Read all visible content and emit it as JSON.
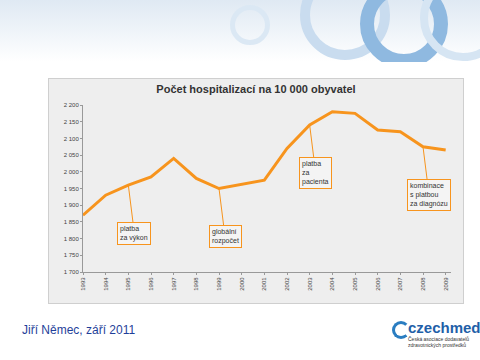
{
  "chart_data": {
    "type": "line",
    "title": "Počet hospitalizací na 10 000 obyvatel",
    "categories": [
      "1993",
      "1994",
      "1995",
      "1996",
      "1997",
      "1998",
      "1999",
      "2000",
      "2001",
      "2002",
      "2003",
      "2004",
      "2005",
      "2006",
      "2007",
      "2008",
      "2009"
    ],
    "values": [
      1870,
      1930,
      1960,
      1985,
      2040,
      1980,
      1950,
      1962,
      1975,
      2070,
      2140,
      2180,
      2175,
      2125,
      2120,
      2075,
      2065
    ],
    "color": "#f7941d",
    "ylim": [
      1700,
      2200
    ],
    "yticks": [
      {
        "value": 1700,
        "label": "1 700"
      },
      {
        "value": 1750,
        "label": "1 750"
      },
      {
        "value": 1800,
        "label": "1 800"
      },
      {
        "value": 1850,
        "label": "1 850"
      },
      {
        "value": 1900,
        "label": "1 900"
      },
      {
        "value": 1950,
        "label": "1 950"
      },
      {
        "value": 2000,
        "label": "2 000"
      },
      {
        "value": 2050,
        "label": "2 050"
      },
      {
        "value": 2100,
        "label": "2 100"
      },
      {
        "value": 2150,
        "label": "2 150"
      },
      {
        "value": 2200,
        "label": "2 200"
      }
    ],
    "grid": false,
    "annotations": [
      {
        "text_lines": [
          "platba",
          "za výkon"
        ],
        "x": "1995"
      },
      {
        "text_lines": [
          "globální",
          "rozpočet"
        ],
        "x": "1999"
      },
      {
        "text_lines": [
          "platba",
          "za",
          "pacienta"
        ],
        "x": "2003"
      },
      {
        "text_lines": [
          "kombinace",
          "s platbou",
          "za diagnózu"
        ],
        "x": "2008"
      }
    ]
  },
  "slide": {
    "footer": "Jiří Němec, září 2011",
    "logo": {
      "name": "czechmed",
      "subtitle_lines": [
        "Česká asociace dodavatelů",
        "zdravotnických prostředků"
      ]
    }
  }
}
